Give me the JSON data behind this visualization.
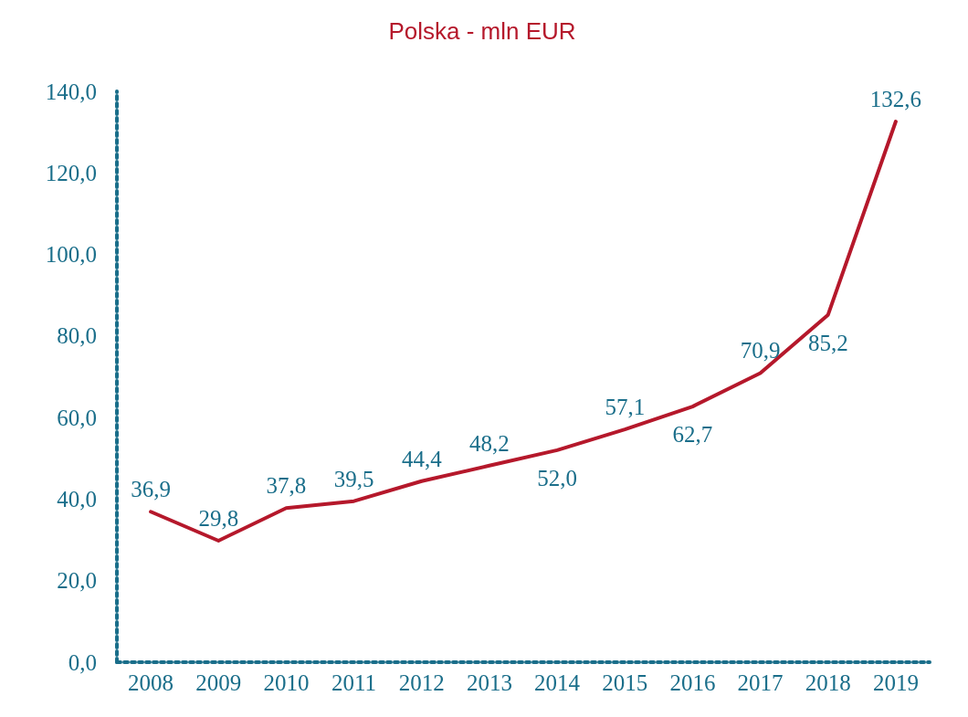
{
  "chart_data": {
    "type": "line",
    "title": "Polska - mln EUR",
    "categories": [
      "2008",
      "2009",
      "2010",
      "2011",
      "2012",
      "2013",
      "2014",
      "2015",
      "2016",
      "2017",
      "2018",
      "2019"
    ],
    "values": [
      36.9,
      29.8,
      37.8,
      39.5,
      44.4,
      48.2,
      52.0,
      57.1,
      62.7,
      70.9,
      85.2,
      132.6
    ],
    "value_labels": [
      "36,9",
      "29,8",
      "37,8",
      "39,5",
      "44,4",
      "48,2",
      "52,0",
      "57,1",
      "62,7",
      "70,9",
      "85,2",
      "132,6"
    ],
    "color": "#b5182b",
    "ylim": [
      0,
      140
    ],
    "yticks": [
      {
        "value": 0,
        "label": "0,0"
      },
      {
        "value": 20,
        "label": "20,0"
      },
      {
        "value": 40,
        "label": "40,0"
      },
      {
        "value": 60,
        "label": "60,0"
      },
      {
        "value": 80,
        "label": "80,0"
      },
      {
        "value": 100,
        "label": "100,0"
      },
      {
        "value": 120,
        "label": "120,0"
      },
      {
        "value": 140,
        "label": "140,0"
      }
    ],
    "grid": false,
    "marker": "none",
    "line_style": "solid"
  }
}
